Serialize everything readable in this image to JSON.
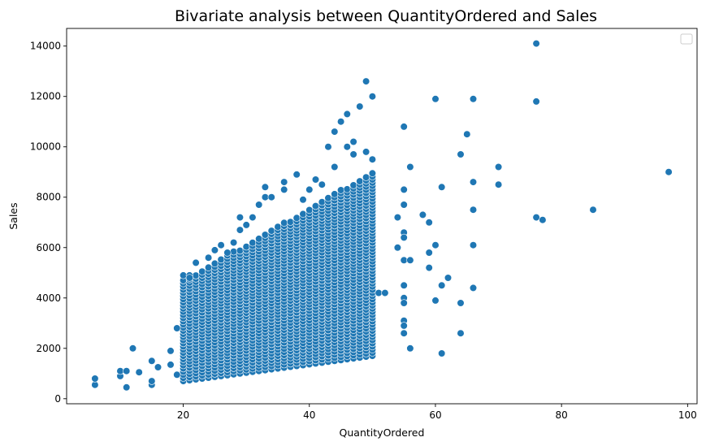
{
  "chart_data": {
    "type": "scatter",
    "title": "Bivariate analysis between QuantityOrdered and Sales",
    "xlabel": "QuantityOrdered",
    "ylabel": "Sales",
    "xlim": [
      1.5,
      101.5
    ],
    "ylim": [
      -200,
      14700
    ],
    "xticks": [
      20,
      40,
      60,
      80,
      100
    ],
    "xtick_labels": [
      "20",
      "40",
      "60",
      "80",
      "100"
    ],
    "yticks": [
      0,
      2000,
      4000,
      6000,
      8000,
      10000,
      12000,
      14000
    ],
    "ytick_labels": [
      "0",
      "2000",
      "4000",
      "6000",
      "8000",
      "10000",
      "12000",
      "14000"
    ],
    "grid": false,
    "legend": "top-right (empty)",
    "point_color": "#1f77b4",
    "dense_region": {
      "x_range": [
        20,
        50
      ],
      "y_min_at_x20": 700,
      "y_max_at_x20": 4700,
      "y_min_at_x50": 1700,
      "y_max_at_x50": 9000
    },
    "points": [
      [
        6,
        550
      ],
      [
        6,
        800
      ],
      [
        10,
        900
      ],
      [
        10,
        1100
      ],
      [
        11,
        450
      ],
      [
        11,
        1100
      ],
      [
        12,
        2000
      ],
      [
        13,
        1050
      ],
      [
        15,
        550
      ],
      [
        15,
        700
      ],
      [
        15,
        1500
      ],
      [
        16,
        1250
      ],
      [
        18,
        1350
      ],
      [
        18,
        1900
      ],
      [
        19,
        2800
      ],
      [
        19,
        950
      ],
      [
        20,
        4900
      ],
      [
        21,
        4900
      ],
      [
        21,
        4800
      ],
      [
        22,
        5400
      ],
      [
        24,
        5600
      ],
      [
        25,
        5900
      ],
      [
        26,
        6100
      ],
      [
        27,
        5800
      ],
      [
        28,
        6200
      ],
      [
        29,
        6700
      ],
      [
        29,
        7200
      ],
      [
        30,
        6900
      ],
      [
        31,
        7200
      ],
      [
        32,
        7700
      ],
      [
        33,
        8000
      ],
      [
        33,
        8400
      ],
      [
        34,
        8000
      ],
      [
        36,
        8600
      ],
      [
        36,
        8300
      ],
      [
        38,
        8900
      ],
      [
        39,
        7900
      ],
      [
        40,
        8300
      ],
      [
        41,
        8700
      ],
      [
        42,
        8500
      ],
      [
        43,
        10000
      ],
      [
        44,
        10600
      ],
      [
        44,
        9200
      ],
      [
        45,
        11000
      ],
      [
        46,
        11300
      ],
      [
        46,
        10000
      ],
      [
        47,
        10200
      ],
      [
        47,
        9700
      ],
      [
        48,
        11600
      ],
      [
        49,
        9800
      ],
      [
        49,
        12600
      ],
      [
        50,
        12000
      ],
      [
        50,
        9500
      ],
      [
        51,
        4200
      ],
      [
        52,
        4200
      ],
      [
        54,
        7200
      ],
      [
        54,
        6000
      ],
      [
        55,
        10800
      ],
      [
        55,
        8300
      ],
      [
        55,
        7700
      ],
      [
        55,
        6600
      ],
      [
        55,
        6400
      ],
      [
        55,
        5500
      ],
      [
        55,
        4500
      ],
      [
        55,
        4000
      ],
      [
        55,
        3800
      ],
      [
        55,
        3100
      ],
      [
        55,
        2900
      ],
      [
        55,
        2600
      ],
      [
        56,
        9200
      ],
      [
        56,
        5500
      ],
      [
        56,
        2000
      ],
      [
        58,
        7300
      ],
      [
        59,
        7000
      ],
      [
        59,
        5800
      ],
      [
        59,
        5200
      ],
      [
        60,
        11900
      ],
      [
        60,
        6100
      ],
      [
        60,
        3900
      ],
      [
        61,
        8400
      ],
      [
        61,
        4500
      ],
      [
        61,
        1800
      ],
      [
        62,
        4800
      ],
      [
        64,
        9700
      ],
      [
        64,
        3800
      ],
      [
        64,
        2600
      ],
      [
        65,
        10500
      ],
      [
        66,
        11900
      ],
      [
        66,
        8600
      ],
      [
        66,
        7500
      ],
      [
        66,
        6100
      ],
      [
        66,
        4400
      ],
      [
        70,
        9200
      ],
      [
        70,
        8500
      ],
      [
        76,
        14100
      ],
      [
        76,
        11800
      ],
      [
        76,
        7200
      ],
      [
        77,
        7100
      ],
      [
        85,
        7500
      ],
      [
        97,
        9000
      ]
    ]
  }
}
